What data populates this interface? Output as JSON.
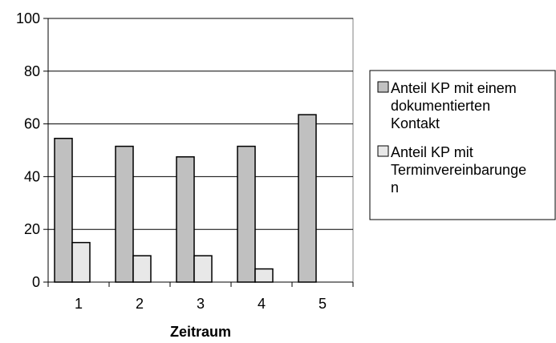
{
  "chart_data": {
    "type": "bar",
    "title": "",
    "xlabel": "Zeitraum",
    "ylabel": "",
    "categories": [
      "1",
      "2",
      "3",
      "4",
      "5"
    ],
    "ylim": [
      0,
      100
    ],
    "yticks": [
      "0",
      "20",
      "40",
      "60",
      "80",
      "100"
    ],
    "grid": true,
    "legend_position": "right",
    "series": [
      {
        "name": "Anteil KP mit einem dokumentierten Kontakt",
        "legend_lines": [
          "Anteil KP mit einem",
          "dokumentierten",
          "Kontakt"
        ],
        "values": [
          54.5,
          51.5,
          47.5,
          51.5,
          63.5
        ],
        "color": "#c0c0c0"
      },
      {
        "name": "Anteil KP mit Terminvereinbarungen",
        "legend_lines": [
          "Anteil KP mit",
          "Terminvereinbarunge",
          "n"
        ],
        "values": [
          15,
          10,
          10,
          5,
          0
        ],
        "color": "#e8e8e8"
      }
    ]
  }
}
